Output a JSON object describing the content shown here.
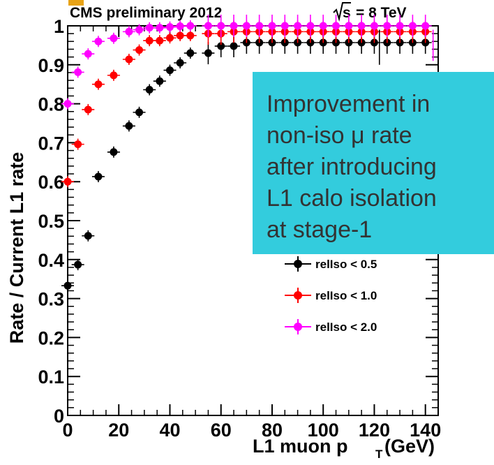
{
  "chart_data": {
    "type": "scatter",
    "header_left": "CMS preliminary 2012",
    "header_right": "= 8 TeV",
    "header_right_symbol": "s",
    "xlabel": "L1 muon p",
    "xlabel_sub": "T",
    "xlabel_unit": " (GeV)",
    "ylabel": "Rate / Current L1 rate",
    "xlim": [
      0,
      145
    ],
    "ylim": [
      0,
      1.0
    ],
    "x_ticks": [
      0,
      20,
      40,
      60,
      80,
      100,
      120,
      140
    ],
    "y_ticks": [
      0,
      0.1,
      0.2,
      0.3,
      0.4,
      0.5,
      0.6,
      0.7,
      0.8,
      0.9,
      1
    ],
    "y_tick_labels": [
      "0",
      "0.1",
      "0.2",
      "0.3",
      "0.4",
      "0.5",
      "0.6",
      "0.7",
      "0.8",
      "0.9",
      "1"
    ],
    "grid": false,
    "legend_position": "middle-right",
    "series": [
      {
        "name": "relIso < 0.5",
        "color": "#000000",
        "x": [
          0,
          4,
          8,
          12,
          18,
          24,
          28,
          32,
          36,
          40,
          44,
          48,
          55,
          60,
          65,
          70,
          75,
          80,
          85,
          90,
          95,
          100,
          105,
          110,
          115,
          120,
          125,
          130,
          135,
          140
        ],
        "y": [
          0.333,
          0.387,
          0.461,
          0.613,
          0.676,
          0.743,
          0.778,
          0.836,
          0.858,
          0.886,
          0.905,
          0.93,
          0.93,
          0.948,
          0.948,
          0.957,
          0.957,
          0.957,
          0.957,
          0.957,
          0.957,
          0.957,
          0.957,
          0.957,
          0.957,
          0.957,
          0.957,
          0.957,
          0.957,
          0.957
        ]
      },
      {
        "name": "relIso < 1.0",
        "color": "#ff0000",
        "x": [
          0,
          4,
          8,
          12,
          18,
          24,
          28,
          32,
          36,
          40,
          44,
          48,
          55,
          60,
          65,
          70,
          75,
          80,
          85,
          90,
          95,
          100,
          105,
          110,
          115,
          120,
          125,
          130,
          135,
          140
        ],
        "y": [
          0.6,
          0.696,
          0.785,
          0.85,
          0.873,
          0.914,
          0.938,
          0.962,
          0.962,
          0.969,
          0.975,
          0.975,
          0.98,
          0.98,
          0.985,
          0.985,
          0.985,
          0.985,
          0.985,
          0.985,
          0.985,
          0.985,
          0.985,
          0.985,
          0.985,
          0.985,
          0.985,
          0.985,
          0.985,
          0.985
        ]
      },
      {
        "name": "relIso < 2.0",
        "color": "#ff00ff",
        "x": [
          0,
          4,
          8,
          12,
          18,
          24,
          28,
          32,
          36,
          40,
          44,
          48,
          55,
          60,
          65,
          70,
          75,
          80,
          85,
          90,
          95,
          100,
          105,
          110,
          115,
          120,
          125,
          130,
          135,
          140
        ],
        "y": [
          0.8,
          0.881,
          0.928,
          0.96,
          0.968,
          0.985,
          0.99,
          0.995,
          0.995,
          0.997,
          0.999,
          1.0,
          1.0,
          1.0,
          1.0,
          1.0,
          1.0,
          1.0,
          1.0,
          1.0,
          1.0,
          1.0,
          1.0,
          1.0,
          1.0,
          1.0,
          1.0,
          1.0,
          1.0,
          1.0
        ]
      }
    ],
    "legend": [
      "relIso < 0.5",
      "relIso < 1.0",
      "relIso < 2.0"
    ],
    "callout": {
      "lines": [
        "Improvement in",
        "non-iso μ rate",
        "after introducing",
        "L1 calo isolation",
        "at stage-1"
      ],
      "background": "#33ccdd"
    }
  }
}
